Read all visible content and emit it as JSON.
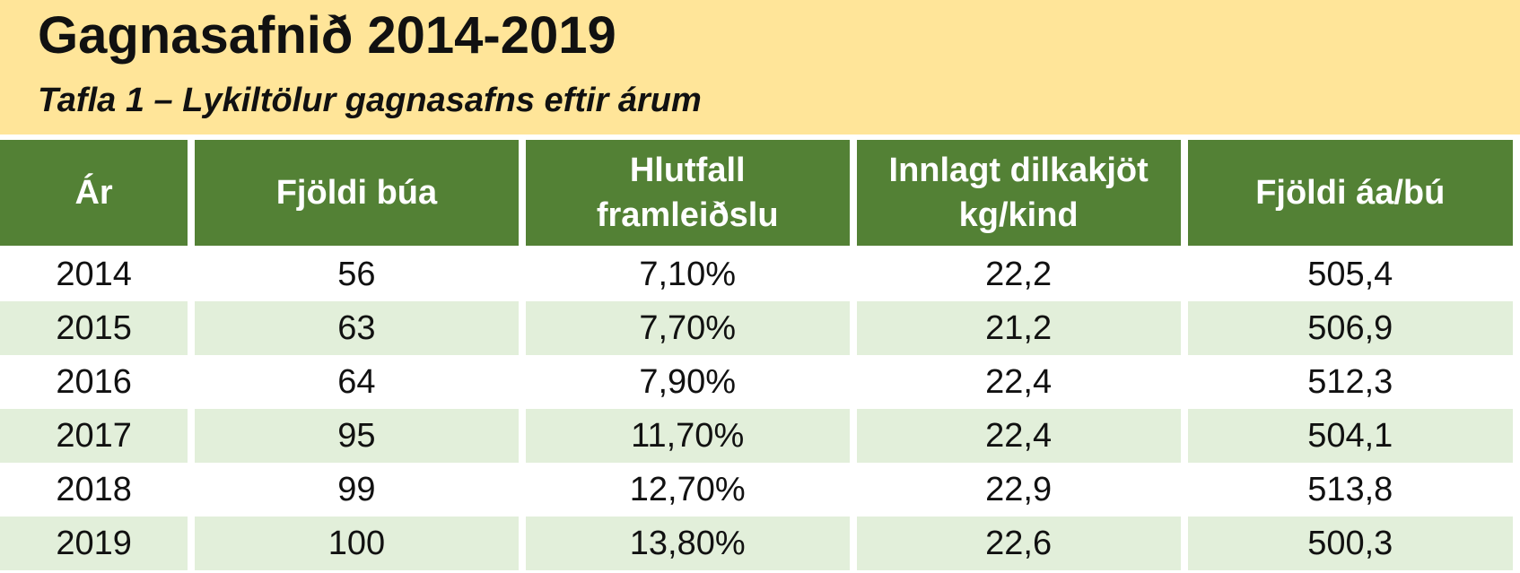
{
  "header": {
    "title": "Gagnasafnið 2014-2019",
    "subtitle": "Tafla 1 – Lykiltölur gagnasafns eftir árum"
  },
  "table": {
    "columns": {
      "year": "Ár",
      "farms": "Fjöldi búa",
      "share_line1": "Hlutfall",
      "share_line2": "framleiðslu",
      "meat_line1": "Innlagt dilkakjöt",
      "meat_line2": "kg/kind",
      "ewes": "Fjöldi áa/bú"
    },
    "rows": [
      {
        "year": "2014",
        "farms": "56",
        "share": "7,10%",
        "meat": "22,2",
        "ewes": "505,4"
      },
      {
        "year": "2015",
        "farms": "63",
        "share": "7,70%",
        "meat": "21,2",
        "ewes": "506,9"
      },
      {
        "year": "2016",
        "farms": "64",
        "share": "7,90%",
        "meat": "22,4",
        "ewes": "512,3"
      },
      {
        "year": "2017",
        "farms": "95",
        "share": "11,70%",
        "meat": "22,4",
        "ewes": "504,1"
      },
      {
        "year": "2018",
        "farms": "99",
        "share": "12,70%",
        "meat": "22,9",
        "ewes": "513,8"
      },
      {
        "year": "2019",
        "farms": "100",
        "share": "13,80%",
        "meat": "22,6",
        "ewes": "500,3"
      }
    ]
  },
  "colors": {
    "banner": "#ffe599",
    "header_bg": "#538135",
    "header_text": "#ffffff",
    "stripe": "#e2efda"
  }
}
